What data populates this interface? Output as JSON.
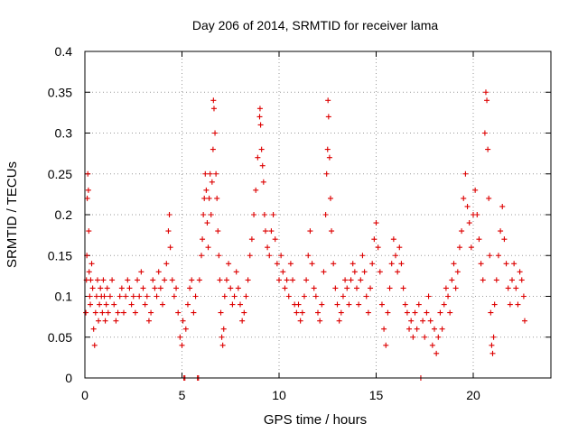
{
  "chart_data": {
    "type": "scatter",
    "title": "Day 206 of 2014, SRMTID for receiver lama",
    "xlabel": "GPS time / hours",
    "ylabel": "SRMTID / TECUs",
    "xlim": [
      0,
      24
    ],
    "ylim": [
      0,
      0.4
    ],
    "x_ticks": [
      0,
      5,
      10,
      15,
      20
    ],
    "x_tick_labels": [
      "0",
      "5",
      "10",
      "15",
      "20"
    ],
    "y_ticks": [
      0,
      0.05,
      0.1,
      0.15,
      0.2,
      0.25,
      0.3,
      0.35,
      0.4
    ],
    "y_tick_labels": [
      "0",
      "0.05",
      "0.1",
      "0.15",
      "0.2",
      "0.25",
      "0.3",
      "0.35",
      "0.4"
    ],
    "grid": true,
    "marker": "plus",
    "color": "#dd0000",
    "series": [
      {
        "name": "SRMTID",
        "points": [
          [
            0.05,
            0.08
          ],
          [
            0.08,
            0.12
          ],
          [
            0.1,
            0.15
          ],
          [
            0.12,
            0.22
          ],
          [
            0.15,
            0.25
          ],
          [
            0.18,
            0.23
          ],
          [
            0.2,
            0.18
          ],
          [
            0.22,
            0.13
          ],
          [
            0.25,
            0.1
          ],
          [
            0.28,
            0.09
          ],
          [
            0.3,
            0.12
          ],
          [
            0.35,
            0.14
          ],
          [
            0.4,
            0.11
          ],
          [
            0.45,
            0.06
          ],
          [
            0.5,
            0.04
          ],
          [
            0.55,
            0.08
          ],
          [
            0.6,
            0.1
          ],
          [
            0.65,
            0.12
          ],
          [
            0.7,
            0.07
          ],
          [
            0.75,
            0.09
          ],
          [
            0.8,
            0.11
          ],
          [
            0.85,
            0.1
          ],
          [
            0.9,
            0.08
          ],
          [
            0.95,
            0.12
          ],
          [
            1.0,
            0.1
          ],
          [
            1.05,
            0.07
          ],
          [
            1.1,
            0.09
          ],
          [
            1.15,
            0.11
          ],
          [
            1.2,
            0.08
          ],
          [
            1.3,
            0.1
          ],
          [
            1.4,
            0.12
          ],
          [
            1.5,
            0.09
          ],
          [
            1.6,
            0.07
          ],
          [
            1.7,
            0.08
          ],
          [
            1.8,
            0.1
          ],
          [
            1.9,
            0.11
          ],
          [
            2.0,
            0.08
          ],
          [
            2.1,
            0.1
          ],
          [
            2.2,
            0.12
          ],
          [
            2.3,
            0.11
          ],
          [
            2.4,
            0.09
          ],
          [
            2.5,
            0.1
          ],
          [
            2.6,
            0.08
          ],
          [
            2.7,
            0.12
          ],
          [
            2.8,
            0.1
          ],
          [
            2.9,
            0.13
          ],
          [
            3.0,
            0.11
          ],
          [
            3.1,
            0.09
          ],
          [
            3.2,
            0.1
          ],
          [
            3.3,
            0.07
          ],
          [
            3.4,
            0.08
          ],
          [
            3.5,
            0.12
          ],
          [
            3.6,
            0.11
          ],
          [
            3.7,
            0.1
          ],
          [
            3.8,
            0.13
          ],
          [
            3.9,
            0.11
          ],
          [
            4.0,
            0.09
          ],
          [
            4.1,
            0.12
          ],
          [
            4.2,
            0.14
          ],
          [
            4.3,
            0.18
          ],
          [
            4.35,
            0.2
          ],
          [
            4.4,
            0.16
          ],
          [
            4.5,
            0.12
          ],
          [
            4.6,
            0.1
          ],
          [
            4.7,
            0.11
          ],
          [
            4.8,
            0.08
          ],
          [
            4.9,
            0.05
          ],
          [
            5.0,
            0.04
          ],
          [
            5.05,
            0.07
          ],
          [
            5.1,
            0.0
          ],
          [
            5.15,
            0.0
          ],
          [
            5.2,
            0.06
          ],
          [
            5.3,
            0.09
          ],
          [
            5.4,
            0.11
          ],
          [
            5.5,
            0.12
          ],
          [
            5.6,
            0.08
          ],
          [
            5.7,
            0.1
          ],
          [
            5.8,
            0.0
          ],
          [
            5.85,
            0.0
          ],
          [
            5.9,
            0.12
          ],
          [
            6.0,
            0.15
          ],
          [
            6.05,
            0.17
          ],
          [
            6.1,
            0.2
          ],
          [
            6.15,
            0.22
          ],
          [
            6.2,
            0.25
          ],
          [
            6.25,
            0.23
          ],
          [
            6.3,
            0.19
          ],
          [
            6.35,
            0.16
          ],
          [
            6.4,
            0.22
          ],
          [
            6.45,
            0.25
          ],
          [
            6.5,
            0.2
          ],
          [
            6.55,
            0.24
          ],
          [
            6.6,
            0.28
          ],
          [
            6.62,
            0.34
          ],
          [
            6.65,
            0.33
          ],
          [
            6.7,
            0.3
          ],
          [
            6.75,
            0.25
          ],
          [
            6.8,
            0.22
          ],
          [
            6.85,
            0.18
          ],
          [
            6.9,
            0.15
          ],
          [
            6.95,
            0.12
          ],
          [
            7.0,
            0.08
          ],
          [
            7.05,
            0.05
          ],
          [
            7.1,
            0.04
          ],
          [
            7.15,
            0.06
          ],
          [
            7.2,
            0.1
          ],
          [
            7.3,
            0.12
          ],
          [
            7.4,
            0.14
          ],
          [
            7.5,
            0.11
          ],
          [
            7.6,
            0.09
          ],
          [
            7.7,
            0.1
          ],
          [
            7.8,
            0.13
          ],
          [
            7.9,
            0.11
          ],
          [
            8.0,
            0.09
          ],
          [
            8.1,
            0.07
          ],
          [
            8.2,
            0.08
          ],
          [
            8.3,
            0.1
          ],
          [
            8.4,
            0.12
          ],
          [
            8.5,
            0.15
          ],
          [
            8.6,
            0.17
          ],
          [
            8.7,
            0.2
          ],
          [
            8.8,
            0.23
          ],
          [
            8.9,
            0.27
          ],
          [
            9.0,
            0.32
          ],
          [
            9.02,
            0.33
          ],
          [
            9.05,
            0.31
          ],
          [
            9.1,
            0.28
          ],
          [
            9.15,
            0.26
          ],
          [
            9.2,
            0.24
          ],
          [
            9.25,
            0.2
          ],
          [
            9.3,
            0.18
          ],
          [
            9.4,
            0.16
          ],
          [
            9.5,
            0.15
          ],
          [
            9.6,
            0.18
          ],
          [
            9.7,
            0.2
          ],
          [
            9.8,
            0.17
          ],
          [
            9.9,
            0.14
          ],
          [
            10.0,
            0.12
          ],
          [
            10.1,
            0.15
          ],
          [
            10.2,
            0.13
          ],
          [
            10.3,
            0.11
          ],
          [
            10.4,
            0.12
          ],
          [
            10.5,
            0.1
          ],
          [
            10.6,
            0.14
          ],
          [
            10.7,
            0.12
          ],
          [
            10.8,
            0.09
          ],
          [
            10.9,
            0.08
          ],
          [
            11.0,
            0.09
          ],
          [
            11.1,
            0.07
          ],
          [
            11.2,
            0.08
          ],
          [
            11.3,
            0.1
          ],
          [
            11.4,
            0.12
          ],
          [
            11.5,
            0.15
          ],
          [
            11.6,
            0.18
          ],
          [
            11.7,
            0.14
          ],
          [
            11.8,
            0.11
          ],
          [
            11.9,
            0.1
          ],
          [
            12.0,
            0.08
          ],
          [
            12.1,
            0.07
          ],
          [
            12.2,
            0.09
          ],
          [
            12.3,
            0.13
          ],
          [
            12.4,
            0.2
          ],
          [
            12.45,
            0.25
          ],
          [
            12.5,
            0.28
          ],
          [
            12.52,
            0.34
          ],
          [
            12.55,
            0.32
          ],
          [
            12.6,
            0.27
          ],
          [
            12.65,
            0.22
          ],
          [
            12.7,
            0.18
          ],
          [
            12.8,
            0.14
          ],
          [
            12.9,
            0.11
          ],
          [
            13.0,
            0.09
          ],
          [
            13.1,
            0.07
          ],
          [
            13.2,
            0.08
          ],
          [
            13.3,
            0.1
          ],
          [
            13.4,
            0.12
          ],
          [
            13.5,
            0.11
          ],
          [
            13.6,
            0.09
          ],
          [
            13.7,
            0.12
          ],
          [
            13.8,
            0.14
          ],
          [
            13.9,
            0.13
          ],
          [
            14.0,
            0.11
          ],
          [
            14.1,
            0.09
          ],
          [
            14.2,
            0.12
          ],
          [
            14.3,
            0.15
          ],
          [
            14.4,
            0.13
          ],
          [
            14.5,
            0.1
          ],
          [
            14.6,
            0.08
          ],
          [
            14.7,
            0.11
          ],
          [
            14.8,
            0.14
          ],
          [
            14.9,
            0.17
          ],
          [
            15.0,
            0.19
          ],
          [
            15.1,
            0.16
          ],
          [
            15.2,
            0.13
          ],
          [
            15.3,
            0.09
          ],
          [
            15.4,
            0.06
          ],
          [
            15.5,
            0.04
          ],
          [
            15.6,
            0.08
          ],
          [
            15.7,
            0.11
          ],
          [
            15.8,
            0.14
          ],
          [
            15.9,
            0.17
          ],
          [
            16.0,
            0.15
          ],
          [
            16.1,
            0.13
          ],
          [
            16.2,
            0.16
          ],
          [
            16.3,
            0.14
          ],
          [
            16.4,
            0.11
          ],
          [
            16.5,
            0.09
          ],
          [
            16.6,
            0.08
          ],
          [
            16.7,
            0.06
          ],
          [
            16.8,
            0.07
          ],
          [
            16.9,
            0.05
          ],
          [
            17.0,
            0.08
          ],
          [
            17.1,
            0.06
          ],
          [
            17.2,
            0.09
          ],
          [
            17.3,
            0.0
          ],
          [
            17.4,
            0.07
          ],
          [
            17.5,
            0.05
          ],
          [
            17.6,
            0.08
          ],
          [
            17.7,
            0.1
          ],
          [
            17.8,
            0.07
          ],
          [
            17.9,
            0.04
          ],
          [
            18.0,
            0.06
          ],
          [
            18.1,
            0.03
          ],
          [
            18.2,
            0.05
          ],
          [
            18.3,
            0.08
          ],
          [
            18.4,
            0.06
          ],
          [
            18.5,
            0.09
          ],
          [
            18.6,
            0.11
          ],
          [
            18.7,
            0.1
          ],
          [
            18.8,
            0.08
          ],
          [
            18.9,
            0.12
          ],
          [
            19.0,
            0.14
          ],
          [
            19.1,
            0.11
          ],
          [
            19.2,
            0.13
          ],
          [
            19.3,
            0.16
          ],
          [
            19.4,
            0.18
          ],
          [
            19.5,
            0.22
          ],
          [
            19.6,
            0.25
          ],
          [
            19.7,
            0.21
          ],
          [
            19.8,
            0.19
          ],
          [
            19.9,
            0.16
          ],
          [
            20.0,
            0.2
          ],
          [
            20.1,
            0.23
          ],
          [
            20.2,
            0.2
          ],
          [
            20.3,
            0.17
          ],
          [
            20.4,
            0.14
          ],
          [
            20.5,
            0.12
          ],
          [
            20.6,
            0.3
          ],
          [
            20.65,
            0.35
          ],
          [
            20.7,
            0.34
          ],
          [
            20.75,
            0.28
          ],
          [
            20.8,
            0.22
          ],
          [
            20.85,
            0.15
          ],
          [
            20.9,
            0.08
          ],
          [
            20.95,
            0.04
          ],
          [
            21.0,
            0.03
          ],
          [
            21.05,
            0.05
          ],
          [
            21.1,
            0.09
          ],
          [
            21.2,
            0.12
          ],
          [
            21.3,
            0.15
          ],
          [
            21.4,
            0.18
          ],
          [
            21.5,
            0.21
          ],
          [
            21.6,
            0.17
          ],
          [
            21.7,
            0.14
          ],
          [
            21.8,
            0.11
          ],
          [
            21.9,
            0.09
          ],
          [
            22.0,
            0.12
          ],
          [
            22.1,
            0.14
          ],
          [
            22.2,
            0.11
          ],
          [
            22.3,
            0.09
          ],
          [
            22.4,
            0.13
          ],
          [
            22.5,
            0.12
          ],
          [
            22.6,
            0.1
          ],
          [
            22.65,
            0.07
          ]
        ]
      }
    ]
  }
}
